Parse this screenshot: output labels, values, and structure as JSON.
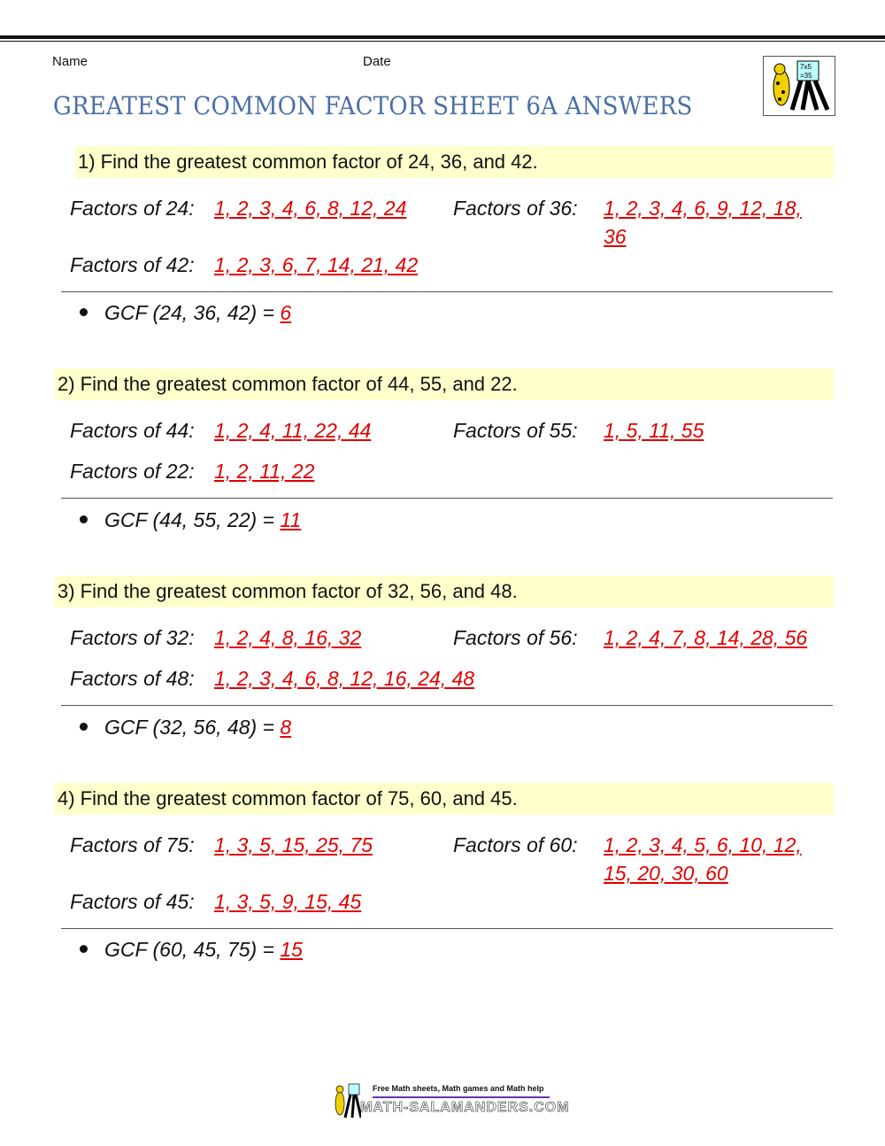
{
  "header": {
    "name_label": "Name",
    "date_label": "Date",
    "title": "GREATEST COMMON FACTOR SHEET 6A ANSWERS",
    "logo": "math-salamanders-logo",
    "logo_text": "7x5 =35"
  },
  "colors": {
    "title": "#4a6fa5",
    "answer": "#e00000",
    "band": "#ffffcc"
  },
  "problems": [
    {
      "question": "1) Find the greatest common factor of 24, 36, and 42.",
      "f1_label": "Factors of 24:",
      "f1": "1, 2, 3, 4, 6, 8, 12, 24",
      "f2_label": "Factors of 36:",
      "f2": "1, 2, 3, 4, 6, 9, 12, 18, 36",
      "f3_label": "Factors of 42:",
      "f3": "1, 2, 3, 6, 7, 14, 21, 42",
      "gcf_label": "GCF (24, 36, 42) = ",
      "gcf": "6"
    },
    {
      "question": "2) Find the greatest common factor of 44, 55, and 22.",
      "f1_label": "Factors of 44:",
      "f1": "1, 2, 4, 11, 22, 44",
      "f2_label": "Factors of 55:",
      "f2": "1, 5, 11, 55",
      "f3_label": "Factors of 22:",
      "f3": "1, 2, 11, 22",
      "gcf_label": "GCF (44, 55, 22) = ",
      "gcf": "11"
    },
    {
      "question": "3) Find the greatest common factor of 32, 56, and 48.",
      "f1_label": "Factors of 32:",
      "f1": "1, 2, 4, 8, 16, 32",
      "f2_label": "Factors of 56:",
      "f2": "1, 2, 4, 7, 8, 14, 28, 56",
      "f3_label": "Factors of 48:",
      "f3": "1, 2, 3, 4, 6, 8, 12, 16, 24, 48",
      "gcf_label": "GCF (32, 56, 48) = ",
      "gcf": "8"
    },
    {
      "question": "4) Find the greatest common factor of 75, 60, and 45.",
      "f1_label": "Factors of 75:",
      "f1": "1, 3, 5, 15, 25, 75",
      "f2_label": "Factors of 60:",
      "f2": "1, 2, 3, 4, 5, 6, 10, 12, 15, 20, 30, 60",
      "f3_label": "Factors of 45:",
      "f3": "1, 3, 5, 9, 15, 45",
      "gcf_label": "GCF (60, 45, 75) = ",
      "gcf": "15"
    }
  ],
  "footer": {
    "tagline": "Free Math sheets, Math games and Math help",
    "site": "MATH-SALAMANDERS.COM"
  }
}
